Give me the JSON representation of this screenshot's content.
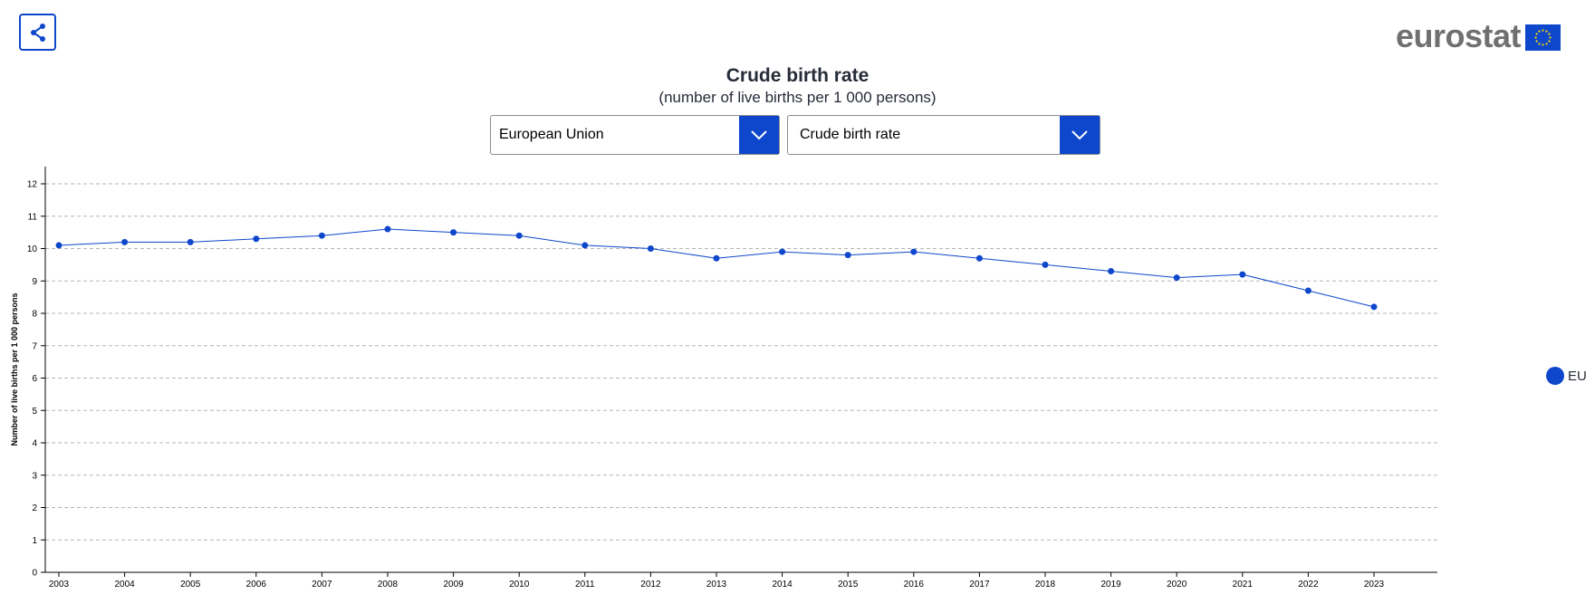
{
  "header": {
    "share_icon": "share-icon",
    "logo_text": "eurostat",
    "logo_flag": "eu-flag-icon"
  },
  "controls": {
    "geo_select": {
      "value": "European Union",
      "icon": "chevron-down-icon"
    },
    "indicator_select": {
      "value": "Crude birth rate",
      "icon": "chevron-down-icon"
    }
  },
  "colors": {
    "accent": "#0e47cb",
    "text": "#262b38",
    "grid": "#b5b5b5",
    "logo_grey": "#707070"
  },
  "chart_data": {
    "type": "line",
    "title": "Crude birth rate",
    "subtitle": "(number of live births per 1 000 persons)",
    "xlabel": "",
    "ylabel": "Number of live births per 1 000 persons",
    "x": [
      "2003",
      "2004",
      "2005",
      "2006",
      "2007",
      "2008",
      "2009",
      "2010",
      "2011",
      "2012",
      "2013",
      "2014",
      "2015",
      "2016",
      "2017",
      "2018",
      "2019",
      "2020",
      "2021",
      "2022",
      "2023"
    ],
    "series": [
      {
        "name": "EU",
        "color": "#0e47cb",
        "values": [
          10.1,
          10.2,
          10.2,
          10.3,
          10.4,
          10.6,
          10.5,
          10.4,
          10.1,
          10.0,
          9.7,
          9.9,
          9.8,
          9.9,
          9.7,
          9.5,
          9.3,
          9.1,
          9.2,
          8.7,
          8.2
        ]
      }
    ],
    "ylim": [
      0,
      12
    ],
    "yticks": [
      0,
      1,
      2,
      3,
      4,
      5,
      6,
      7,
      8,
      9,
      10,
      11,
      12
    ],
    "grid": true,
    "legend_position": "right"
  }
}
